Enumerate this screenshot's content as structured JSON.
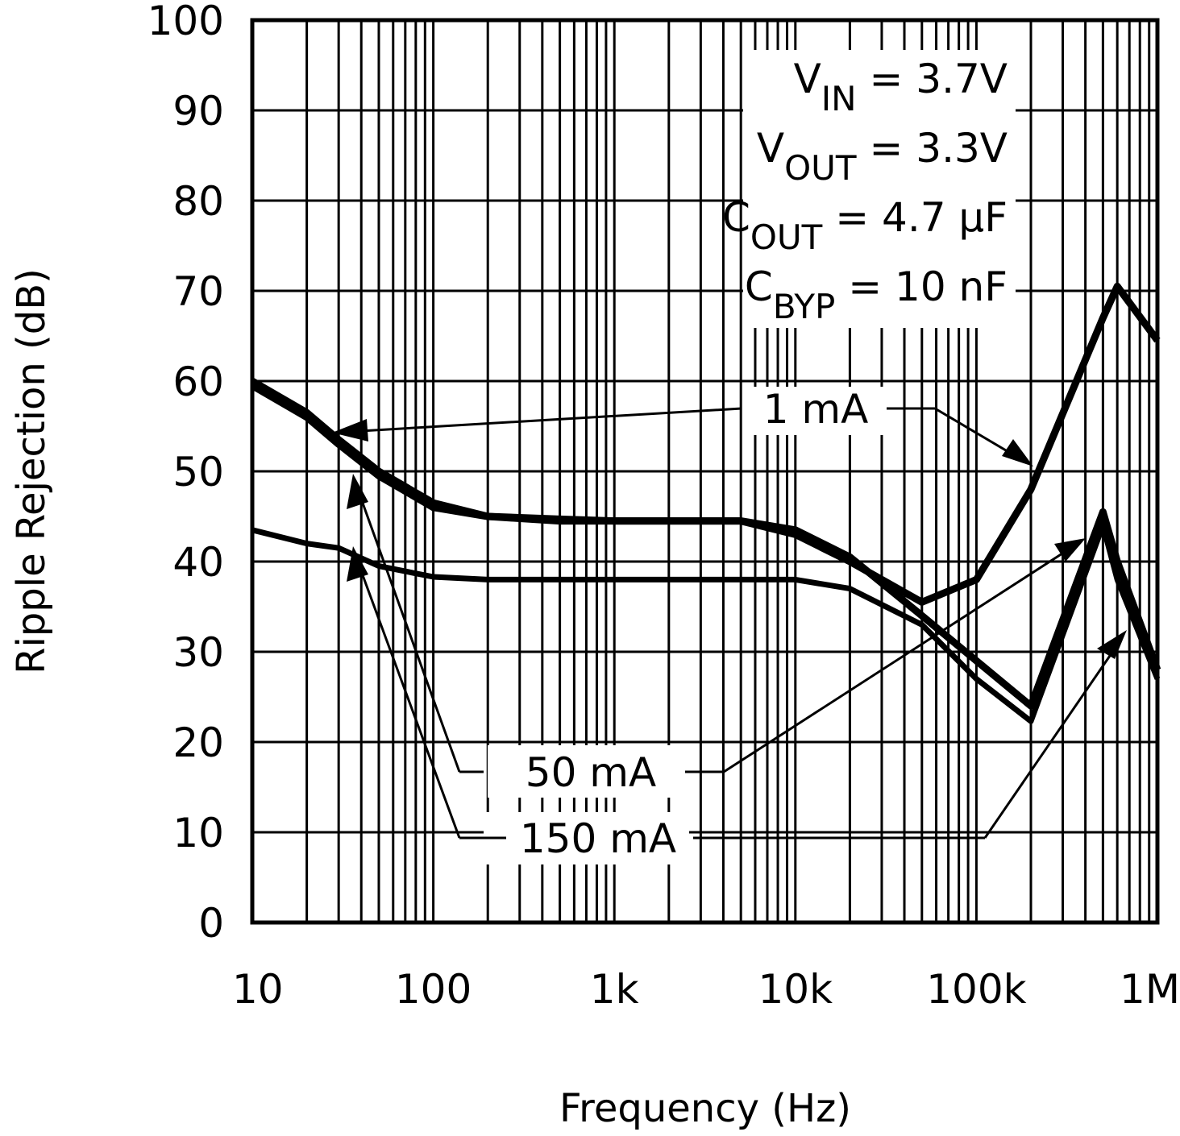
{
  "chart_data": {
    "type": "line",
    "x_label": "Frequency (Hz)",
    "y_label": "Ripple Rejection (dB)",
    "x_scale": "log",
    "grid": true,
    "minor_grid": true,
    "x": [
      10,
      20,
      30,
      50,
      100,
      200,
      500,
      1000,
      5000,
      10000,
      20000,
      50000,
      100000,
      200000,
      500000,
      600000,
      1000000
    ],
    "series": [
      {
        "name": "1 mA",
        "color": "#000000",
        "values": [
          60,
          56.5,
          53.5,
          50,
          46.5,
          45,
          44.7,
          44.5,
          44.5,
          43,
          40,
          35.5,
          38,
          48,
          67,
          70.5,
          64.5
        ]
      },
      {
        "name": "50 mA",
        "color": "#000000",
        "values": [
          59.5,
          56,
          53,
          49.5,
          46,
          45,
          44.5,
          44.5,
          44.5,
          43.5,
          40.5,
          34,
          29,
          24,
          45.5,
          40,
          28
        ]
      },
      {
        "name": "150 mA",
        "color": "#000000",
        "values": [
          43.5,
          42,
          41.5,
          39.5,
          38.3,
          38,
          38,
          38,
          38,
          38,
          37,
          33,
          27,
          22.3,
          44,
          38,
          27
        ]
      }
    ],
    "xlim": [
      10,
      1000000
    ],
    "xticks": [
      10,
      100,
      {
        "value": 1000,
        "label": "1k"
      },
      {
        "value": 10000,
        "label": "10k"
      },
      {
        "value": 100000,
        "label": "100k"
      },
      {
        "value": 1000000,
        "label": "1M"
      }
    ],
    "ylim": [
      0,
      100
    ],
    "yticks": [
      0,
      10,
      20,
      30,
      40,
      50,
      60,
      70,
      80,
      90,
      100
    ],
    "annotations": [
      {
        "base": "V",
        "sub": "IN",
        "tail": " = 3.7V"
      },
      {
        "base": "V",
        "sub": "OUT",
        "tail": " = 3.3V"
      },
      {
        "base": "C",
        "sub": "OUT",
        "tail": " = 4.7 µF"
      },
      {
        "base": "C",
        "sub": "BYP",
        "tail": " = 10 nF"
      }
    ]
  }
}
